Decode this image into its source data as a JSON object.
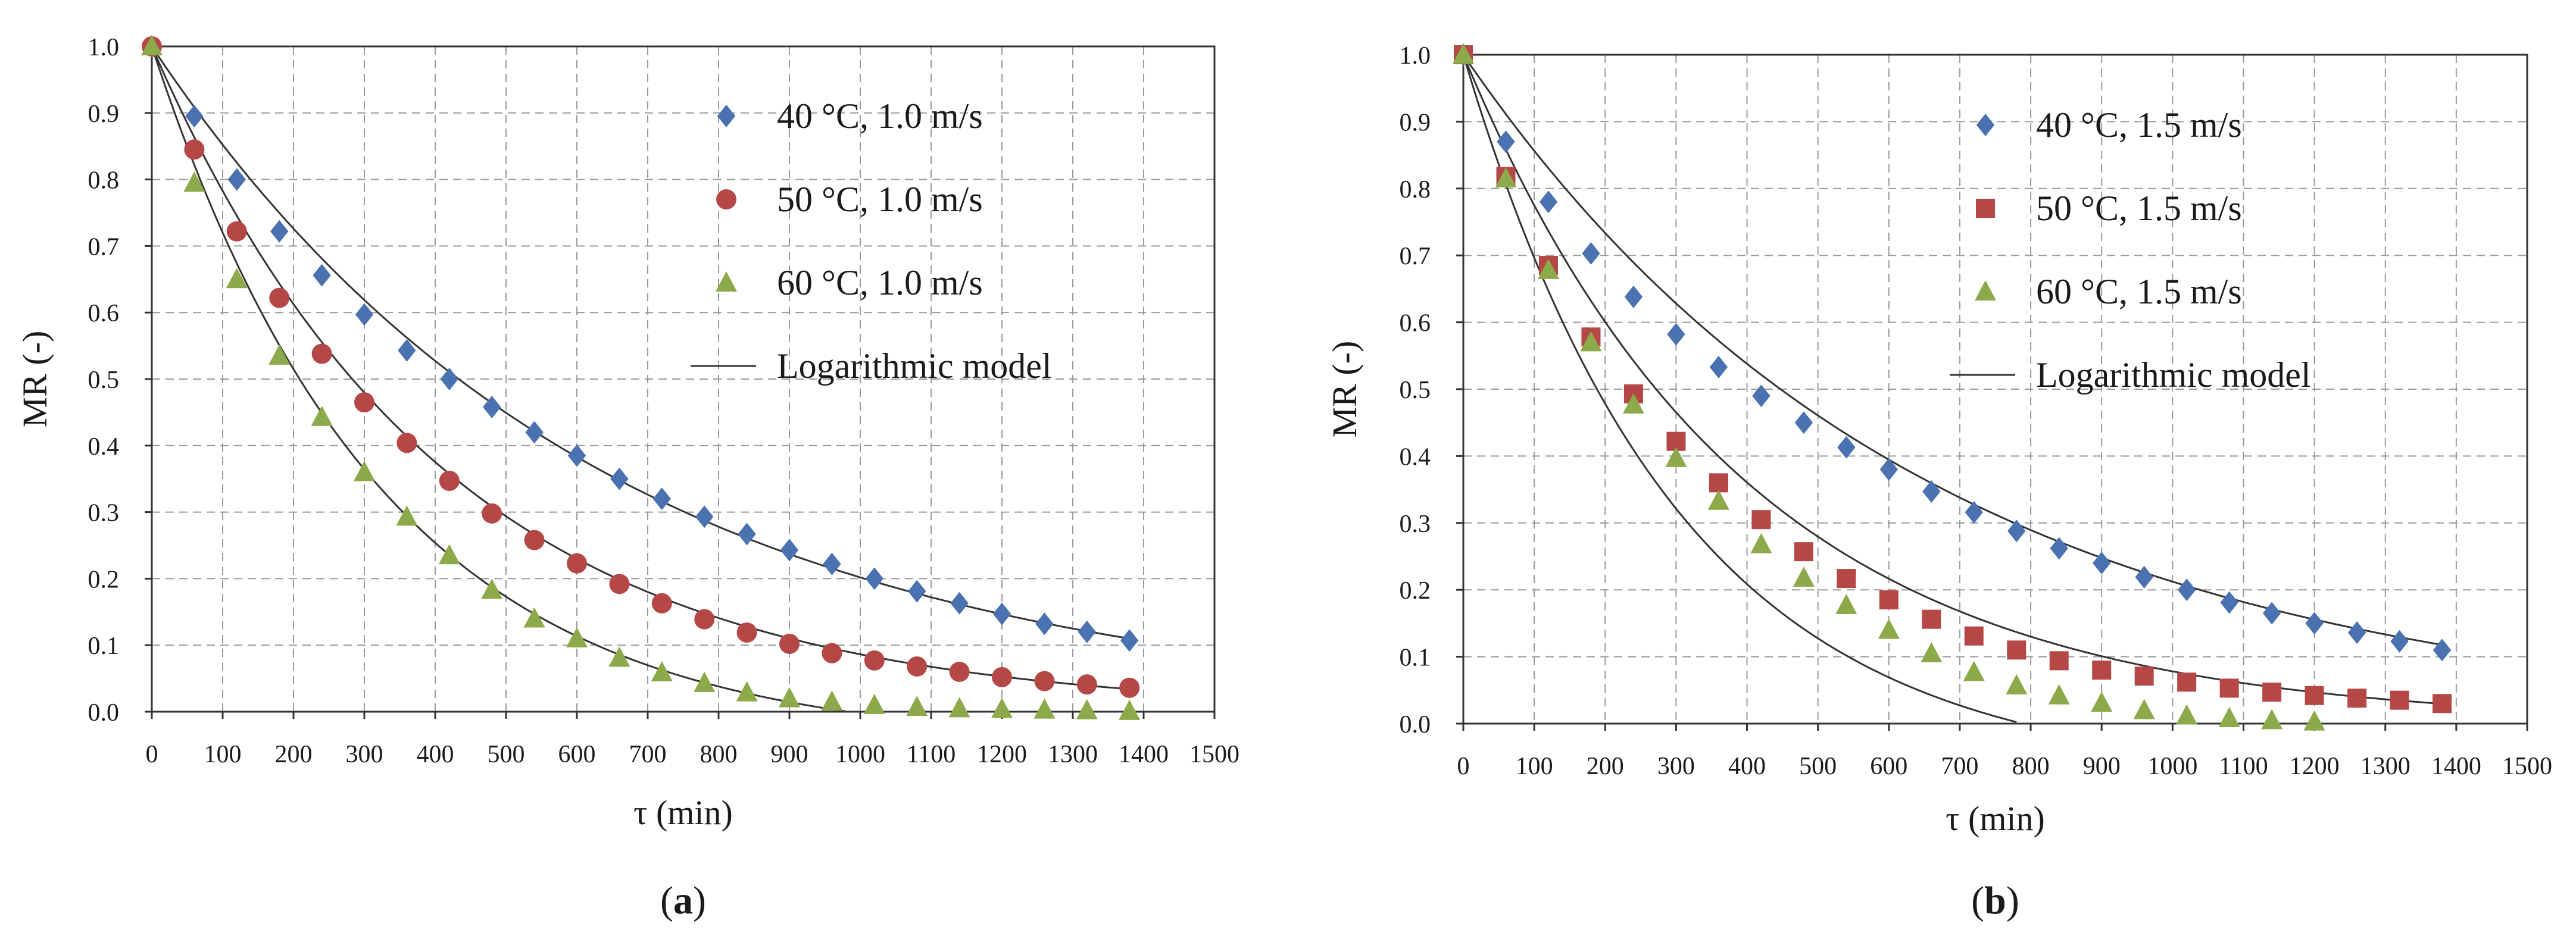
{
  "colors": {
    "series_40": "#4a72b0",
    "series_50": "#b54846",
    "series_60": "#8daa4a",
    "model_line": "#333333",
    "grid": "#9a9a9a",
    "axis": "#333333"
  },
  "chart_data": [
    {
      "type": "scatter",
      "panel_caption": "(a)",
      "panel_letter": "a",
      "xlabel": "τ (min)",
      "ylabel": "MR (-)",
      "xlim": [
        0,
        1500
      ],
      "ylim": [
        0,
        1.0
      ],
      "x_ticks": [
        "0",
        "100",
        "200",
        "300",
        "400",
        "500",
        "600",
        "700",
        "800",
        "900",
        "1000",
        "1100",
        "1200",
        "1300",
        "1400",
        "1500"
      ],
      "y_ticks": [
        "0.0",
        "0.1",
        "0.2",
        "0.3",
        "0.4",
        "0.5",
        "0.6",
        "0.7",
        "0.8",
        "0.9",
        "1.0"
      ],
      "grid": true,
      "legend_position": "top-right",
      "x": [
        0,
        60,
        120,
        180,
        240,
        300,
        360,
        420,
        480,
        540,
        600,
        660,
        720,
        780,
        840,
        900,
        960,
        1020,
        1080,
        1140,
        1200,
        1260,
        1320,
        1380
      ],
      "series": [
        {
          "name": "40 °C, 1.0 m/s",
          "marker": "diamond",
          "color_key": "series_40",
          "values": [
            1.0,
            0.895,
            0.8,
            0.722,
            0.656,
            0.597,
            0.543,
            0.5,
            0.458,
            0.42,
            0.385,
            0.35,
            0.32,
            0.293,
            0.267,
            0.243,
            0.222,
            0.2,
            0.181,
            0.163,
            0.147,
            0.132,
            0.12,
            0.107
          ]
        },
        {
          "name": "50 °C, 1.0 m/s",
          "marker": "circle",
          "color_key": "series_50",
          "values": [
            1.0,
            0.845,
            0.722,
            0.622,
            0.538,
            0.465,
            0.404,
            0.347,
            0.298,
            0.258,
            0.223,
            0.192,
            0.163,
            0.139,
            0.119,
            0.102,
            0.088,
            0.077,
            0.068,
            0.06,
            0.052,
            0.046,
            0.041,
            0.036
          ]
        },
        {
          "name": "60 °C, 1.0 m/s",
          "marker": "triangle",
          "color_key": "series_60",
          "values": [
            1.0,
            0.795,
            0.65,
            0.535,
            0.443,
            0.36,
            0.293,
            0.235,
            0.183,
            0.14,
            0.11,
            0.081,
            0.059,
            0.043,
            0.029,
            0.02,
            0.015,
            0.01,
            0.007,
            0.005,
            0.004,
            0.003,
            0.002,
            0.001
          ]
        }
      ],
      "model_label": "Logarithmic model",
      "model_curves": [
        {
          "series": "40 °C, 1.0 m/s",
          "a": 1.0,
          "k": 0.0016,
          "c": 0.0,
          "x_end": 1380
        },
        {
          "series": "50 °C, 1.0 m/s",
          "a": 1.0,
          "k": 0.00245,
          "c": 0.0,
          "x_end": 1380
        },
        {
          "series": "60 °C, 1.0 m/s",
          "a": 1.05,
          "k": 0.0031,
          "c": -0.05,
          "x_end": 1380
        }
      ]
    },
    {
      "type": "scatter",
      "panel_caption": "(b)",
      "panel_letter": "b",
      "xlabel": "τ (min)",
      "ylabel": "MR (-)",
      "xlim": [
        0,
        1500
      ],
      "ylim": [
        0,
        1.0
      ],
      "x_ticks": [
        "0",
        "100",
        "200",
        "300",
        "400",
        "500",
        "600",
        "700",
        "800",
        "900",
        "1000",
        "1100",
        "1200",
        "1300",
        "1400",
        "1500"
      ],
      "y_ticks": [
        "0.0",
        "0.1",
        "0.2",
        "0.3",
        "0.4",
        "0.5",
        "0.6",
        "0.7",
        "0.8",
        "0.9",
        "1.0"
      ],
      "grid": true,
      "legend_position": "top-right",
      "x": [
        0,
        60,
        120,
        180,
        240,
        300,
        360,
        420,
        480,
        540,
        600,
        660,
        720,
        780,
        840,
        900,
        960,
        1020,
        1080,
        1140,
        1200,
        1260,
        1320,
        1380
      ],
      "series": [
        {
          "name": "40 °C, 1.5 m/s",
          "marker": "diamond",
          "color_key": "series_40",
          "values": [
            1.0,
            0.87,
            0.78,
            0.703,
            0.638,
            0.582,
            0.533,
            0.49,
            0.45,
            0.413,
            0.38,
            0.347,
            0.316,
            0.288,
            0.262,
            0.24,
            0.219,
            0.2,
            0.181,
            0.165,
            0.15,
            0.136,
            0.123,
            0.11
          ]
        },
        {
          "name": "50 °C, 1.5 m/s",
          "marker": "square",
          "color_key": "series_50",
          "values": [
            1.0,
            0.818,
            0.685,
            0.578,
            0.493,
            0.422,
            0.36,
            0.305,
            0.257,
            0.217,
            0.185,
            0.156,
            0.131,
            0.11,
            0.094,
            0.08,
            0.071,
            0.062,
            0.053,
            0.047,
            0.042,
            0.038,
            0.035,
            0.03
          ]
        },
        {
          "name": "60 °C, 1.5 m/s",
          "marker": "triangle",
          "color_key": "series_60",
          "values": [
            1.0,
            0.815,
            0.678,
            0.57,
            0.477,
            0.397,
            0.333,
            0.268,
            0.218,
            0.177,
            0.14,
            0.105,
            0.077,
            0.057,
            0.042,
            0.031,
            0.02,
            0.012,
            0.008,
            0.005,
            0.003
          ]
        }
      ],
      "model_label": "Logarithmic model",
      "model_curves": [
        {
          "series": "40 °C, 1.5 m/s",
          "a": 1.0,
          "k": 0.00155,
          "c": 0.0,
          "x_end": 1380
        },
        {
          "series": "50 °C, 1.5 m/s",
          "a": 1.0,
          "k": 0.00255,
          "c": 0.0,
          "x_end": 1380
        },
        {
          "series": "60 °C, 1.5 m/s",
          "a": 1.08,
          "k": 0.0033,
          "c": -0.08,
          "x_end": 1300
        }
      ]
    }
  ]
}
